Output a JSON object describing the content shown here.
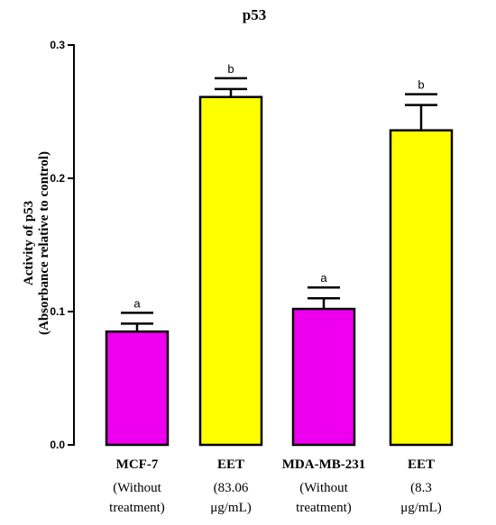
{
  "chart_data": {
    "type": "bar",
    "title": "p53",
    "ylabel_lines": [
      "Activity of p53",
      "(Absorbance relative to control)"
    ],
    "xlabel": "",
    "ylim": [
      0,
      0.3
    ],
    "yticks": [
      "0.0",
      "0.1",
      "0.2",
      "0.3"
    ],
    "ytick_values": [
      0,
      0.1,
      0.2,
      0.3
    ],
    "categories": [
      {
        "main": "MCF-7",
        "sub": [
          "(Without",
          "treatment)"
        ]
      },
      {
        "main": "EET",
        "sub": [
          "(83.06",
          "μg/mL)"
        ]
      },
      {
        "main": "MDA-MB-231",
        "sub": [
          "(Without",
          "treatment)"
        ]
      },
      {
        "main": "EET",
        "sub": [
          "(8.3",
          "μg/mL)"
        ]
      }
    ],
    "values": [
      0.085,
      0.261,
      0.102,
      0.236
    ],
    "errors": [
      0.006,
      0.006,
      0.008,
      0.019
    ],
    "significance": [
      "a",
      "b",
      "a",
      "b"
    ],
    "colors": [
      "#ee00ee",
      "#ffff00",
      "#ee00ee",
      "#ffff00"
    ],
    "grid": false
  }
}
